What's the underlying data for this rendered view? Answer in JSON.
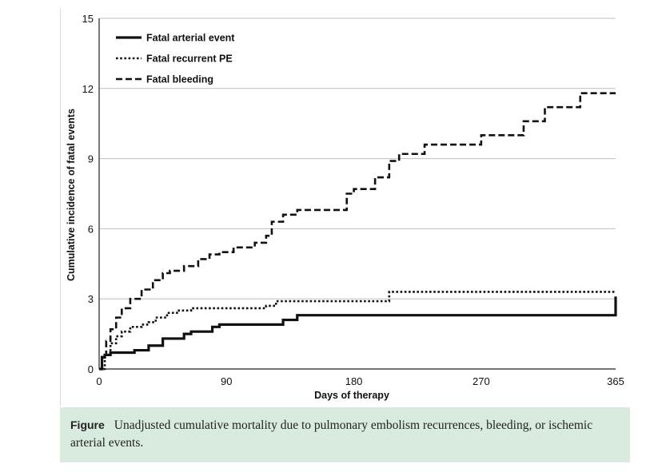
{
  "chart_data": {
    "type": "line",
    "step": true,
    "title": "",
    "xlabel": "Days of therapy",
    "ylabel": "Cumulative incidence of fatal events",
    "xlim": [
      0,
      365
    ],
    "ylim": [
      0,
      15
    ],
    "xticks": [
      0,
      90,
      180,
      270,
      365
    ],
    "yticks": [
      0,
      3,
      6,
      9,
      12,
      15
    ],
    "grid": "horizontal",
    "legend_position": "top-left",
    "series": [
      {
        "name": "Fatal arterial event",
        "style": "solid",
        "color": "#111111",
        "x": [
          0,
          2,
          4,
          8,
          15,
          25,
          35,
          45,
          60,
          65,
          80,
          85,
          130,
          140,
          365
        ],
        "y": [
          0.0,
          0.5,
          0.6,
          0.7,
          0.7,
          0.8,
          1.0,
          1.3,
          1.5,
          1.6,
          1.8,
          1.9,
          2.1,
          2.3,
          3.1
        ]
      },
      {
        "name": "Fatal recurrent PE",
        "style": "dotted",
        "color": "#111111",
        "x": [
          0,
          4,
          8,
          12,
          16,
          22,
          30,
          35,
          40,
          48,
          55,
          65,
          85,
          118,
          125,
          205,
          365
        ],
        "y": [
          0.0,
          0.6,
          1.1,
          1.4,
          1.6,
          1.8,
          1.9,
          2.0,
          2.2,
          2.4,
          2.5,
          2.6,
          2.6,
          2.7,
          2.9,
          3.3,
          3.3
        ]
      },
      {
        "name": "Fatal bleeding",
        "style": "dashed",
        "color": "#111111",
        "x": [
          0,
          2,
          5,
          8,
          12,
          16,
          22,
          30,
          38,
          45,
          50,
          60,
          70,
          78,
          85,
          95,
          110,
          118,
          122,
          130,
          140,
          160,
          175,
          180,
          195,
          205,
          212,
          230,
          240,
          270,
          285,
          300,
          315,
          340,
          365
        ],
        "y": [
          0.0,
          0.6,
          1.2,
          1.7,
          2.2,
          2.6,
          3.0,
          3.4,
          3.8,
          4.1,
          4.2,
          4.4,
          4.7,
          4.9,
          5.0,
          5.2,
          5.4,
          5.7,
          6.3,
          6.6,
          6.8,
          6.8,
          7.5,
          7.7,
          8.2,
          8.9,
          9.2,
          9.6,
          9.6,
          10.0,
          10.0,
          10.6,
          11.2,
          11.8,
          11.8
        ]
      }
    ]
  },
  "caption": {
    "label": "Figure",
    "text": "Unadjusted cumulative mortality due to pulmonary embolism recurrences, bleeding, or ischemic arterial events."
  },
  "colors": {
    "caption_background": "#d9eadf",
    "gridline": "#bfbfbf",
    "axis": "#222222"
  }
}
